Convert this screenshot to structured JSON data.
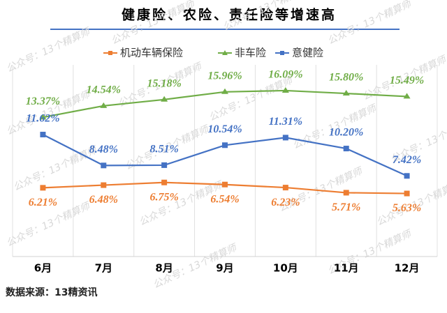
{
  "chart_data": {
    "type": "line",
    "title": "健康险、农险、责任险等增速高",
    "source": "数据来源：13精资讯",
    "watermark": "公众号：13个精算师",
    "categories": [
      "6月",
      "7月",
      "8月",
      "9月",
      "10月",
      "11月",
      "12月"
    ],
    "series": [
      {
        "name": "机动车辆保险",
        "color": "#ed7d31",
        "values": [
          6.21,
          6.48,
          6.75,
          6.54,
          6.23,
          5.71,
          5.63
        ],
        "value_labels": [
          "6.21%",
          "6.48%",
          "6.75%",
          "6.54%",
          "6.23%",
          "5.71%",
          "5.63%"
        ]
      },
      {
        "name": "非车险",
        "color": "#70ad47",
        "values": [
          13.37,
          14.54,
          15.18,
          15.96,
          16.09,
          15.8,
          15.49
        ],
        "value_labels": [
          "13.37%",
          "14.54%",
          "15.18%",
          "15.96%",
          "16.09%",
          "15.80%",
          "15.49%"
        ]
      },
      {
        "name": "意健险",
        "color": "#4472c4",
        "values": [
          11.62,
          8.48,
          8.51,
          10.54,
          11.31,
          10.2,
          7.42
        ],
        "value_labels": [
          "11.62%",
          "8.48%",
          "8.51%",
          "10.54%",
          "11.31%",
          "10.20%",
          "7.42%"
        ]
      }
    ],
    "ylim": [
      0,
      18
    ],
    "grid": true
  }
}
